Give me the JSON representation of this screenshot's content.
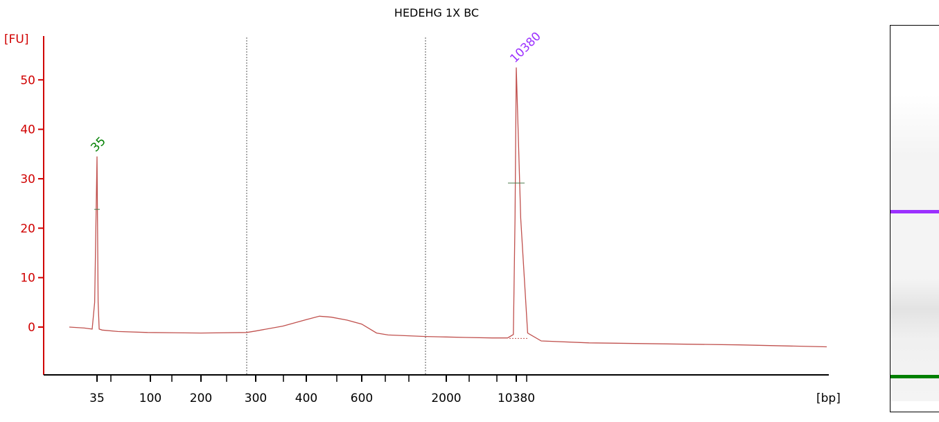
{
  "chart_data": {
    "type": "line",
    "title": "HEDEHG 1X BC",
    "ylabel": "[FU]",
    "xlabel": "[bp]",
    "ylim": [
      -10,
      55
    ],
    "y_ticks": [
      0,
      10,
      20,
      30,
      40,
      50
    ],
    "x_tick_labels": [
      "35",
      "100",
      "200",
      "300",
      "400",
      "600",
      "2000",
      "10380"
    ],
    "grid": false,
    "series": [
      {
        "color": "#c0504d",
        "x_bp": [
          25,
          30,
          33,
          34,
          35,
          36,
          37,
          40,
          60,
          100,
          200,
          280,
          300,
          350,
          400,
          450,
          500,
          550,
          600,
          800,
          1000,
          1500,
          2000,
          3000,
          5000,
          8000,
          9500,
          10000,
          10380,
          10800,
          11500,
          13000,
          20000,
          40000,
          60000
        ],
        "values": [
          0,
          -0.2,
          -0.4,
          5,
          34.5,
          5,
          -0.4,
          -0.6,
          -0.9,
          -1.1,
          -1.2,
          -1.1,
          -0.8,
          0.2,
          1.5,
          2.2,
          2.0,
          1.4,
          0.6,
          -1.2,
          -1.6,
          -1.9,
          -2.0,
          -2.1,
          -2.2,
          -2.2,
          -1.5,
          22,
          52.5,
          22,
          -1.2,
          -2.8,
          -3.2,
          -3.6,
          -4.0
        ]
      }
    ],
    "peaks": [
      {
        "label": "35",
        "x_bp": 35,
        "value": 34.5,
        "color": "#008000"
      },
      {
        "label": "10380",
        "x_bp": 10380,
        "value": 52.5,
        "color": "#9b30ff"
      }
    ],
    "region_markers_bp": [
      280,
      1500
    ]
  },
  "gel": {
    "bands": [
      {
        "color": "#9b30ff",
        "label": "10380"
      },
      {
        "color": "#008000",
        "label": "35"
      }
    ]
  }
}
